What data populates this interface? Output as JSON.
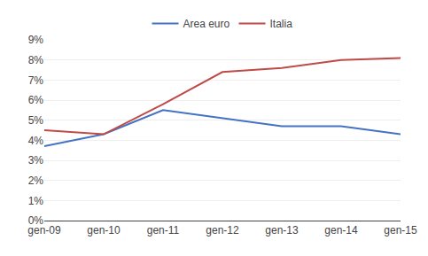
{
  "chart_data": {
    "type": "line",
    "categories": [
      "gen-09",
      "gen-10",
      "gen-11",
      "gen-12",
      "gen-13",
      "gen-14",
      "gen-15"
    ],
    "series": [
      {
        "name": "Area euro",
        "color": "#4472C4",
        "values": [
          0.037,
          0.043,
          0.055,
          0.051,
          0.047,
          0.047,
          0.043
        ]
      },
      {
        "name": "Italia",
        "color": "#BE4B48",
        "values": [
          0.045,
          0.043,
          0.058,
          0.074,
          0.076,
          0.08,
          0.081
        ]
      }
    ],
    "ylim": [
      0,
      0.09
    ],
    "yticks": [
      {
        "value": 0.0,
        "label": "0%"
      },
      {
        "value": 0.01,
        "label": "1%"
      },
      {
        "value": 0.02,
        "label": "2%"
      },
      {
        "value": 0.03,
        "label": "3%"
      },
      {
        "value": 0.04,
        "label": "4%"
      },
      {
        "value": 0.05,
        "label": "5%"
      },
      {
        "value": 0.06,
        "label": "6%"
      },
      {
        "value": 0.07,
        "label": "7%"
      },
      {
        "value": 0.08,
        "label": "8%"
      },
      {
        "value": 0.09,
        "label": "9%"
      }
    ],
    "grid": true,
    "legend": "top"
  }
}
